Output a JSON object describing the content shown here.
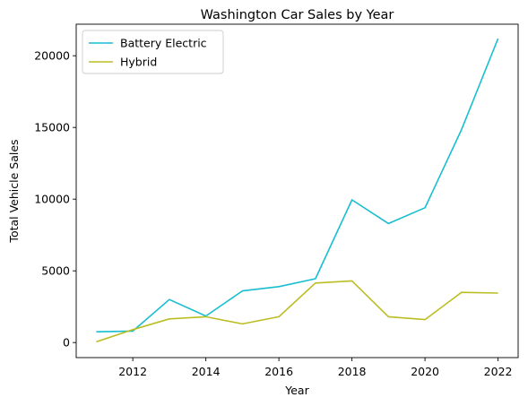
{
  "chart_data": {
    "type": "line",
    "title": "Washington Car Sales by Year",
    "xlabel": "Year",
    "ylabel": "Total Vehicle Sales",
    "x": [
      2011,
      2012,
      2013,
      2014,
      2015,
      2016,
      2017,
      2018,
      2019,
      2020,
      2021,
      2022
    ],
    "xlim": [
      2010.45,
      2022.55
    ],
    "ylim": [
      -1050,
      22200
    ],
    "xticks": [
      2012,
      2014,
      2016,
      2018,
      2020,
      2022
    ],
    "yticks": [
      0,
      5000,
      10000,
      15000,
      20000
    ],
    "grid": false,
    "legend_position": "upper left",
    "series": [
      {
        "name": "Battery Electric",
        "color": "#17becf",
        "values": [
          750,
          800,
          3000,
          1850,
          3600,
          3900,
          4450,
          9950,
          8300,
          9400,
          14850,
          21200
        ]
      },
      {
        "name": "Hybrid",
        "color": "#bcbd22",
        "values": [
          50,
          900,
          1650,
          1800,
          1300,
          1800,
          4150,
          4300,
          1800,
          1600,
          3500,
          3450
        ]
      }
    ]
  }
}
